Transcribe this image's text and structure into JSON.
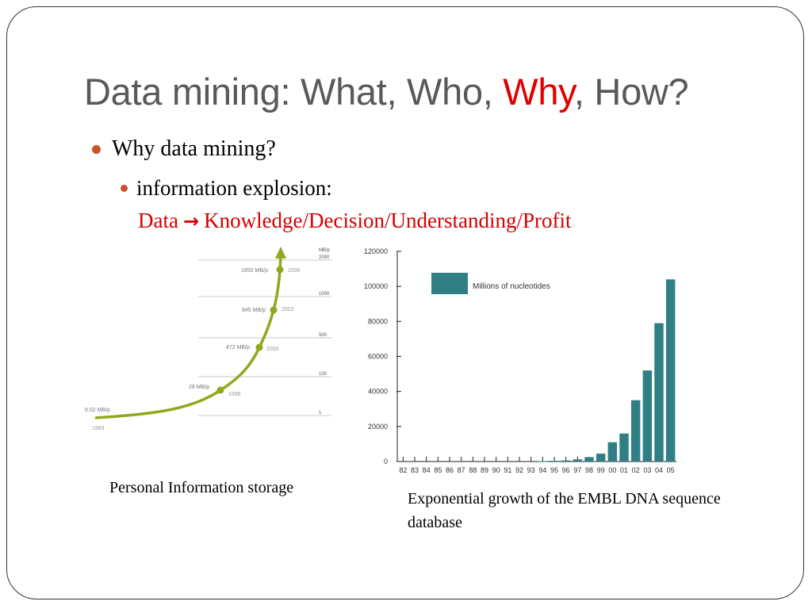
{
  "slide": {
    "title_prefix": "Data mining: What, Who, ",
    "title_emphasis": "Why",
    "title_suffix": ", How?",
    "bullet_1": "Why data mining?",
    "bullet_2": "information explosion:",
    "flow": {
      "data": "Data",
      "arrow": "→",
      "rest": "Knowledge/Decision/Understanding/Profit"
    },
    "caption_left": "Personal Information storage",
    "caption_right": "Exponential growth of the EMBL DNA sequence database"
  },
  "colors": {
    "title": "#595959",
    "emphasis": "#e00000",
    "bullet": "#d0502a",
    "curve": "#8fa91e",
    "bar": "#2f7f84"
  },
  "chart_data": [
    {
      "type": "line",
      "x": [
        "1983",
        "1996",
        "2000",
        "2003",
        "2006"
      ],
      "values": [
        0.02,
        28,
        472,
        845,
        1850
      ],
      "point_labels": [
        "0.02 MB/p",
        "28 MB/p",
        "472 MB/p",
        "845 MB/p",
        "1850 MB/p"
      ],
      "unit_label": "MB/p",
      "scale_ticks": [
        "2000",
        "1000",
        "500",
        "100",
        "1"
      ],
      "grid": true,
      "legend": "none"
    },
    {
      "type": "bar",
      "categories": [
        "82",
        "83",
        "84",
        "85",
        "86",
        "87",
        "88",
        "89",
        "90",
        "91",
        "92",
        "93",
        "94",
        "95",
        "96",
        "97",
        "98",
        "99",
        "00",
        "01",
        "02",
        "03",
        "04",
        "05"
      ],
      "series": [
        {
          "name": "Millions of nucleotides",
          "values": [
            0,
            0,
            0,
            0,
            0,
            0,
            0,
            0,
            0,
            0,
            0,
            0,
            200,
            400,
            600,
            1200,
            2500,
            4500,
            11000,
            16000,
            35000,
            52000,
            79000,
            104000
          ]
        }
      ],
      "y_ticks": [
        "0",
        "20000",
        "40000",
        "60000",
        "80000",
        "100000",
        "120000"
      ],
      "ylim": [
        0,
        120000
      ],
      "legend": "top-left"
    }
  ]
}
